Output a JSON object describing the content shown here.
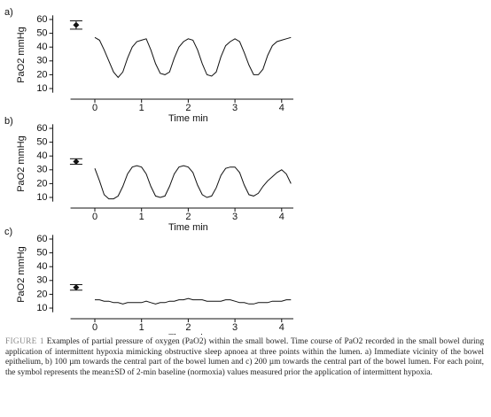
{
  "chart_data": [
    {
      "type": "line",
      "panel_label": "a)",
      "y_label": "PaO2 mmHg",
      "x_label": "Time min",
      "xlim": [
        -0.9,
        4.25
      ],
      "ylim": [
        7,
        63
      ],
      "xticks": [
        0,
        1,
        2,
        3,
        4
      ],
      "yticks": [
        10,
        20,
        30,
        40,
        50,
        60
      ],
      "x": [
        0,
        0.1,
        0.2,
        0.3,
        0.4,
        0.5,
        0.6,
        0.7,
        0.8,
        0.9,
        1,
        1.1,
        1.2,
        1.3,
        1.4,
        1.5,
        1.6,
        1.7,
        1.8,
        1.9,
        2,
        2.1,
        2.2,
        2.3,
        2.4,
        2.5,
        2.6,
        2.7,
        2.8,
        2.9,
        3,
        3.1,
        3.2,
        3.3,
        3.4,
        3.5,
        3.6,
        3.7,
        3.8,
        3.9,
        4,
        4.1,
        4.2
      ],
      "series": [
        {
          "color": "#111111",
          "values": [
            47,
            45,
            38,
            30,
            22,
            18,
            22,
            32,
            40,
            44,
            45,
            46,
            38,
            28,
            21,
            20,
            22,
            32,
            40,
            44,
            46,
            45,
            38,
            28,
            20,
            19,
            22,
            33,
            41,
            44,
            46,
            44,
            36,
            27,
            20,
            20,
            24,
            34,
            41,
            44,
            45,
            46,
            47
          ]
        }
      ],
      "baseline": {
        "x": -0.4,
        "y": 56,
        "error": 3
      }
    },
    {
      "type": "line",
      "panel_label": "b)",
      "y_label": "PaO2 mmHg",
      "x_label": "Time min",
      "xlim": [
        -0.9,
        4.25
      ],
      "ylim": [
        7,
        63
      ],
      "xticks": [
        0,
        1,
        2,
        3,
        4
      ],
      "yticks": [
        10,
        20,
        30,
        40,
        50,
        60
      ],
      "x": [
        0,
        0.1,
        0.2,
        0.3,
        0.4,
        0.5,
        0.6,
        0.7,
        0.8,
        0.9,
        1,
        1.1,
        1.2,
        1.3,
        1.4,
        1.5,
        1.6,
        1.7,
        1.8,
        1.9,
        2,
        2.1,
        2.2,
        2.3,
        2.4,
        2.5,
        2.6,
        2.7,
        2.8,
        2.9,
        3,
        3.1,
        3.2,
        3.3,
        3.4,
        3.5,
        3.6,
        3.7,
        3.8,
        3.9,
        4,
        4.1,
        4.2
      ],
      "series": [
        {
          "color": "#111111",
          "values": [
            31,
            22,
            12,
            9,
            9,
            11,
            18,
            27,
            32,
            33,
            32,
            27,
            18,
            11,
            10,
            11,
            18,
            27,
            32,
            33,
            32,
            28,
            19,
            12,
            10,
            11,
            17,
            26,
            31,
            32,
            32,
            28,
            19,
            12,
            11,
            13,
            18,
            22,
            25,
            28,
            30,
            27,
            20
          ]
        }
      ],
      "baseline": {
        "x": -0.4,
        "y": 36,
        "error": 2
      }
    },
    {
      "type": "line",
      "panel_label": "c)",
      "y_label": "PaO2 mmHg",
      "x_label": "Time min",
      "xlim": [
        -0.9,
        4.25
      ],
      "ylim": [
        7,
        63
      ],
      "xticks": [
        0,
        1,
        2,
        3,
        4
      ],
      "yticks": [
        10,
        20,
        30,
        40,
        50,
        60
      ],
      "x": [
        0,
        0.1,
        0.2,
        0.3,
        0.4,
        0.5,
        0.6,
        0.7,
        0.8,
        0.9,
        1,
        1.1,
        1.2,
        1.3,
        1.4,
        1.5,
        1.6,
        1.7,
        1.8,
        1.9,
        2,
        2.1,
        2.2,
        2.3,
        2.4,
        2.5,
        2.6,
        2.7,
        2.8,
        2.9,
        3,
        3.1,
        3.2,
        3.3,
        3.4,
        3.5,
        3.6,
        3.7,
        3.8,
        3.9,
        4,
        4.1,
        4.2
      ],
      "series": [
        {
          "color": "#111111",
          "values": [
            16,
            16,
            15,
            15,
            14,
            14,
            13,
            14,
            14,
            14,
            14,
            15,
            14,
            13,
            14,
            14,
            15,
            15,
            16,
            16,
            17,
            16,
            16,
            16,
            15,
            15,
            15,
            15,
            16,
            16,
            15,
            14,
            14,
            13,
            13,
            14,
            14,
            14,
            15,
            15,
            15,
            16,
            16
          ]
        }
      ],
      "baseline": {
        "x": -0.4,
        "y": 25,
        "error": 2
      }
    }
  ],
  "caption": {
    "label": "FIGURE 1",
    "text": "Examples of partial pressure of oxygen (PaO2) within the small bowel. Time course of PaO2 recorded in the small bowel during application of intermittent hypoxia mimicking obstructive sleep apnoea at three points within the lumen. a) Immediate vicinity of the bowel epithelium, b) 100 µm towards the central part of the bowel lumen and c) 200 µm towards the central part of the bowel lumen. For each point, the symbol represents the mean±SD of 2-min baseline (normoxia) values measured prior the application of intermittent hypoxia."
  }
}
